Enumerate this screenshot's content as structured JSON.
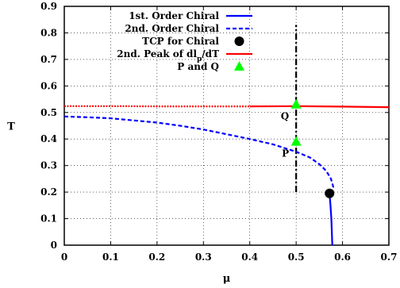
{
  "chart_data": {
    "type": "line",
    "xlabel": "μ",
    "ylabel": "T",
    "xlim": [
      0,
      0.7
    ],
    "ylim": [
      0,
      0.9
    ],
    "x_ticks": [
      "0",
      "0.1",
      "0.2",
      "0.3",
      "0.4",
      "0.5",
      "0.6",
      "0.7"
    ],
    "y_ticks": [
      "0",
      "0.1",
      "0.2",
      "0.3",
      "0.4",
      "0.5",
      "0.6",
      "0.7",
      "0.8",
      "0.9"
    ],
    "grid": true,
    "legend_position": "top-left",
    "series": [
      {
        "name": "1st. Order Chiral",
        "style": "solid",
        "color": "#0000ff",
        "points": [
          [
            0.572,
            0.195
          ],
          [
            0.574,
            0.15
          ],
          [
            0.576,
            0.1
          ],
          [
            0.577,
            0.05
          ],
          [
            0.578,
            0.0
          ]
        ]
      },
      {
        "name": "2nd. Order Chiral",
        "style": "dashed",
        "color": "#0000ff",
        "points": [
          [
            0.0,
            0.485
          ],
          [
            0.05,
            0.482
          ],
          [
            0.1,
            0.478
          ],
          [
            0.15,
            0.47
          ],
          [
            0.2,
            0.462
          ],
          [
            0.25,
            0.45
          ],
          [
            0.3,
            0.436
          ],
          [
            0.35,
            0.418
          ],
          [
            0.4,
            0.4
          ],
          [
            0.45,
            0.38
          ],
          [
            0.5,
            0.352
          ],
          [
            0.53,
            0.33
          ],
          [
            0.55,
            0.305
          ],
          [
            0.565,
            0.28
          ],
          [
            0.575,
            0.25
          ],
          [
            0.58,
            0.22
          ],
          [
            0.578,
            0.195
          ]
        ]
      },
      {
        "name": "TCP for Chiral",
        "style": "marker-circle",
        "color": "#000000",
        "points": [
          [
            0.572,
            0.195
          ]
        ]
      },
      {
        "name": "2nd. Peak of dl_p/dT",
        "label_main": "2nd. Peak of dl",
        "label_sub": "p",
        "label_tail": "/dT",
        "style": "solid-dotted",
        "color": "#ff0000",
        "dotted_until_x": 0.4,
        "points": [
          [
            0.0,
            0.524
          ],
          [
            0.1,
            0.524
          ],
          [
            0.2,
            0.523
          ],
          [
            0.3,
            0.523
          ],
          [
            0.4,
            0.523
          ],
          [
            0.5,
            0.524
          ],
          [
            0.6,
            0.522
          ],
          [
            0.7,
            0.52
          ]
        ]
      },
      {
        "name": "P and Q",
        "style": "marker-triangle",
        "color": "#00ff00",
        "points": [
          [
            0.5,
            0.53
          ],
          [
            0.5,
            0.39
          ]
        ]
      }
    ],
    "vertical_line": {
      "style": "dash-dot",
      "color": "#000000",
      "x": 0.5,
      "y_from": 0.2,
      "y_to": 0.83
    },
    "annotations": [
      {
        "text": "Q",
        "x": 0.5,
        "y": 0.53
      },
      {
        "text": "P",
        "x": 0.5,
        "y": 0.39
      }
    ]
  }
}
